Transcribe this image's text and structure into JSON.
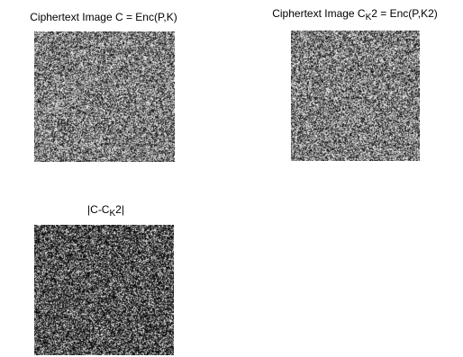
{
  "panels": [
    {
      "id": "ciphertext-c",
      "title_pre": "Ciphertext Image C = Enc(P,K)",
      "title_sub": "",
      "title_post": "",
      "brightness": 0.58
    },
    {
      "id": "ciphertext-ck2",
      "title_pre": "Ciphertext Image C",
      "title_sub": "K",
      "title_post": "2 = Enc(P,K2)",
      "brightness": 0.58
    },
    {
      "id": "abs-difference",
      "title_pre": "|C-C",
      "title_sub": "K",
      "title_post": "2|",
      "brightness": 0.32
    }
  ]
}
